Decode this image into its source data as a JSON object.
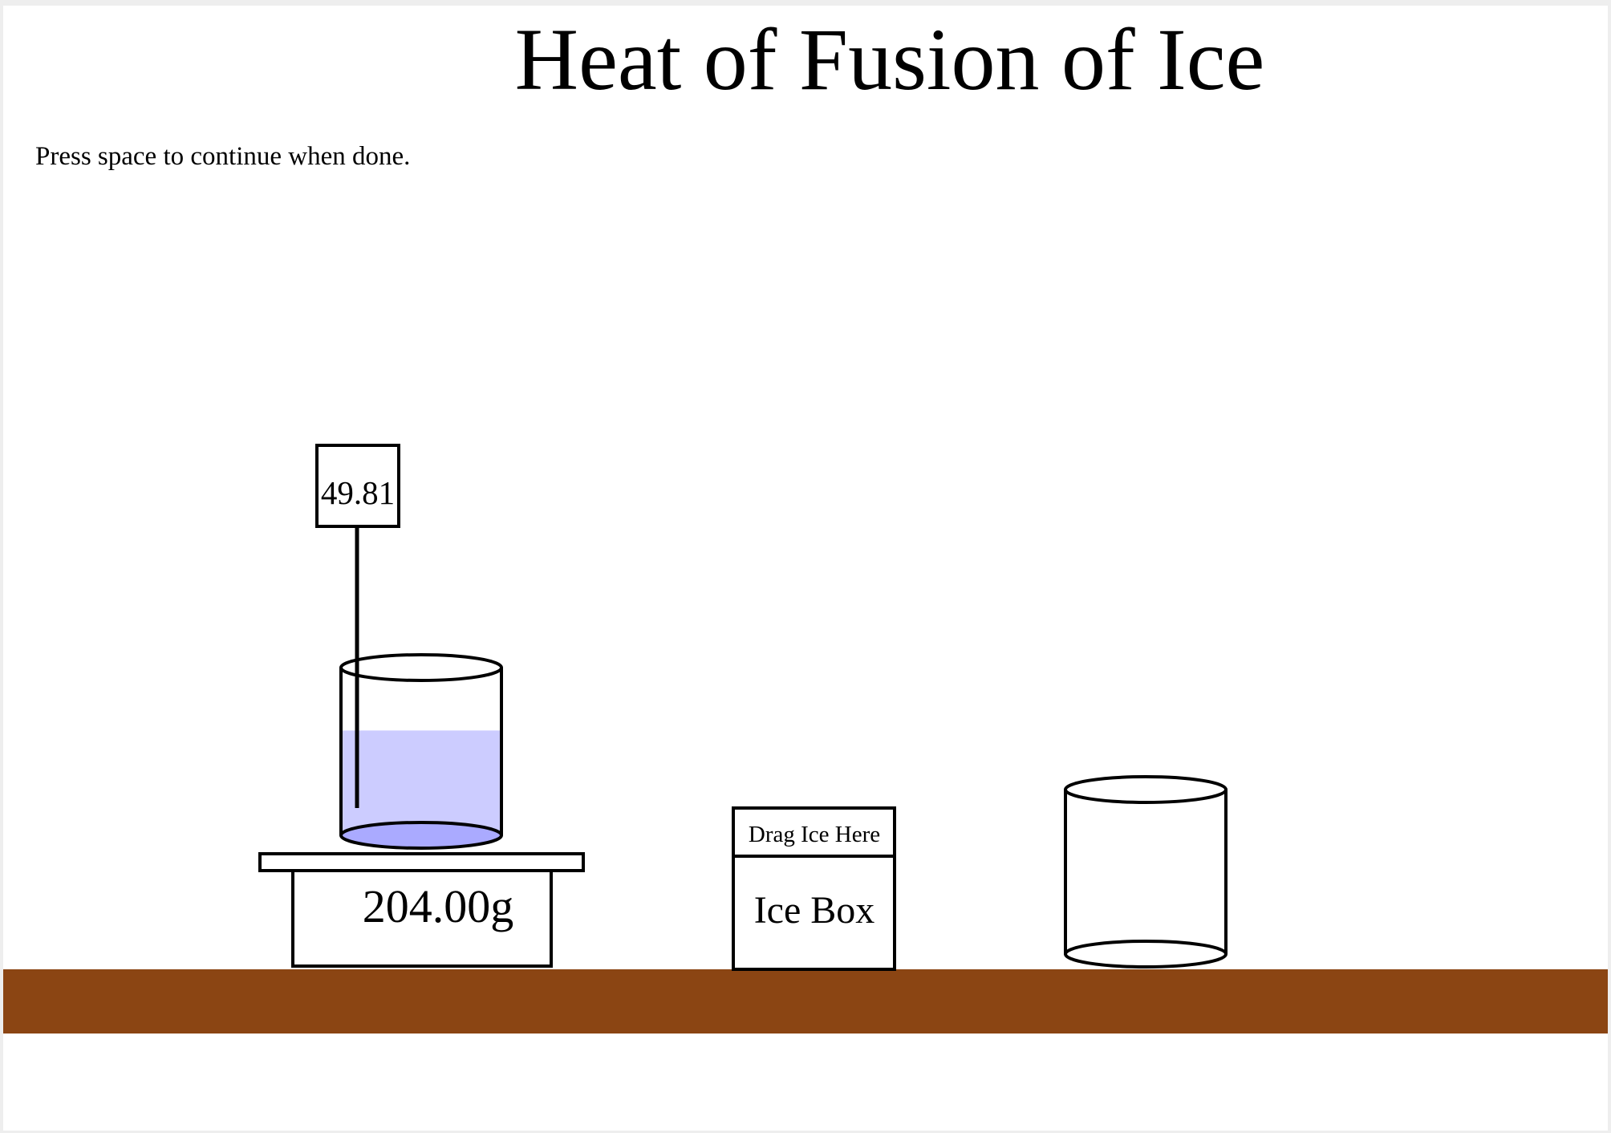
{
  "title": "Heat of Fusion of Ice",
  "instructions": "Press space to continue when done.",
  "thermometer": {
    "reading": "49.81"
  },
  "scale": {
    "reading": "204.00g"
  },
  "beaker_on_scale": {
    "water_fill_fraction": 0.5
  },
  "ice_box": {
    "drop_label": "Drag Ice Here",
    "label": "Ice Box"
  },
  "colors": {
    "table": "#8B4513",
    "water": "#CCCCFF",
    "beaker_bottom_water": "#AAAAFF",
    "background": "#FFFFFF"
  }
}
